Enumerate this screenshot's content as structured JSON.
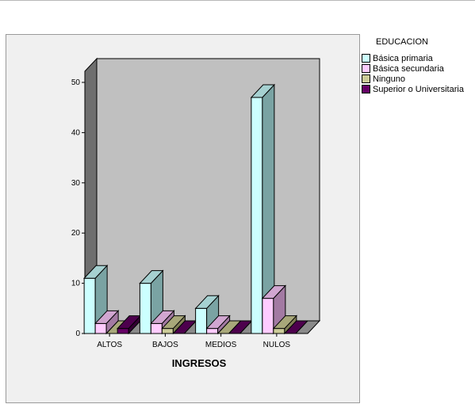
{
  "chart_data": {
    "type": "bar",
    "xlabel": "INGRESOS",
    "categories": [
      "ALTOS",
      "BAJOS",
      "MEDIOS",
      "NULOS"
    ],
    "ylim": [
      0,
      50
    ],
    "yticks": [
      0,
      10,
      20,
      30,
      40,
      50
    ],
    "legend_title": "EDUCACION",
    "legend_position": "right",
    "series": [
      {
        "name": "Básica primaria",
        "values": [
          11,
          10,
          5,
          47
        ],
        "color": "#ccffff",
        "side": "#7aa3a3",
        "top": "#a6d1d1"
      },
      {
        "name": "Básica secundaria",
        "values": [
          2,
          2,
          1,
          7
        ],
        "color": "#ffccff",
        "side": "#a37aa3",
        "top": "#d1a6d1"
      },
      {
        "name": "Ninguno",
        "values": [
          0,
          1,
          0,
          1
        ],
        "color": "#cccc99",
        "side": "#807f55",
        "top": "#a8a87a"
      },
      {
        "name": "Superior o Universitaria",
        "values": [
          1,
          0,
          0,
          0
        ],
        "color": "#660066",
        "side": "#330033",
        "top": "#4d004d"
      }
    ],
    "wall_color": "#c0c0c0",
    "side_wall_color": "#6e6e6e",
    "floor_color": "#8a8a8a"
  }
}
